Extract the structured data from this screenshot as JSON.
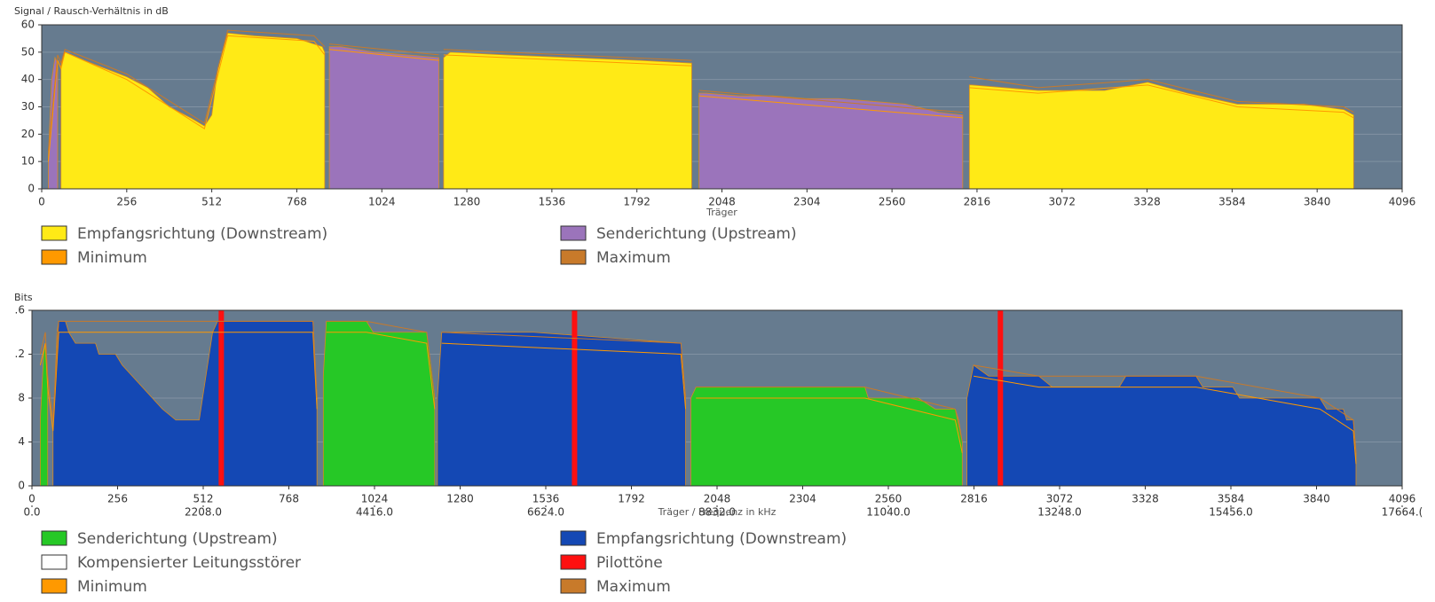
{
  "chart_data": [
    {
      "type": "area",
      "title": "Signal / Rausch-Verhältnis in dB",
      "xlabel": "Träger",
      "xlim": [
        0,
        4096
      ],
      "xticks": [
        0,
        256,
        512,
        768,
        1024,
        1280,
        1536,
        1792,
        2048,
        2304,
        2560,
        2816,
        3072,
        3328,
        3584,
        3840,
        4096
      ],
      "ylim": [
        0,
        60
      ],
      "yticks": [
        0,
        10,
        20,
        30,
        40,
        50,
        60
      ],
      "grid": true,
      "legend": "bottom",
      "series": [
        {
          "name": "Empfangsrichtung (Downstream)",
          "color": "#ffea16",
          "style": "area",
          "x": [
            58,
            70,
            128,
            192,
            256,
            320,
            384,
            448,
            490,
            512,
            530,
            560,
            640,
            768,
            820,
            845,
            852,
            1000,
            1210,
            1230,
            1400,
            1600,
            1800,
            1957,
            2000,
            2793,
            2800,
            3000,
            3200,
            3330,
            3450,
            3600,
            3800,
            3920,
            3950
          ],
          "values": [
            45,
            50,
            47,
            44,
            41,
            37,
            30,
            26,
            23,
            27,
            44,
            57,
            56,
            55,
            53,
            52,
            50,
            null,
            48,
            50,
            49,
            48,
            47,
            46,
            null,
            38,
            38,
            36,
            36,
            39,
            35,
            31,
            31,
            29,
            27
          ]
        },
        {
          "name": "Senderichtung (Upstream)",
          "color": "#9b74bb",
          "style": "area",
          "x": [
            20,
            30,
            40,
            48,
            400,
            866,
            900,
            1000,
            1100,
            1196,
            1500,
            1979,
            2000,
            2100,
            2200,
            2300,
            2400,
            2500,
            2600,
            2700,
            2773
          ],
          "values": [
            12,
            40,
            48,
            46,
            null,
            52,
            52,
            50,
            49,
            48,
            null,
            35,
            35,
            34,
            34,
            33,
            33,
            32,
            31,
            28,
            27
          ]
        },
        {
          "name": "Minimum",
          "color": "#ff9900",
          "style": "line",
          "x": [
            20,
            48,
            58,
            70,
            256,
            490,
            560,
            820,
            852,
            860,
            866,
            1196,
            1203,
            1210,
            1957,
            1968,
            1979,
            2773,
            2783,
            2793,
            3000,
            3330,
            3600,
            3920,
            3950
          ],
          "values": [
            10,
            47,
            44,
            50,
            40,
            22,
            56,
            54,
            49,
            null,
            51,
            47,
            null,
            49,
            45,
            null,
            34,
            26,
            null,
            37,
            35,
            38,
            30,
            28,
            26
          ]
        },
        {
          "name": "Maximum",
          "color": "#c87a2a",
          "style": "line",
          "x": [
            20,
            48,
            58,
            70,
            256,
            490,
            560,
            820,
            852,
            860,
            866,
            1196,
            1203,
            1210,
            1957,
            1968,
            1979,
            2773,
            2783,
            2793,
            3000,
            3330,
            3600,
            3920,
            3950
          ],
          "values": [
            14,
            49,
            46,
            51,
            42,
            24,
            58,
            56,
            52,
            null,
            53,
            49,
            null,
            51,
            47,
            null,
            36,
            28,
            null,
            41,
            37,
            40,
            32,
            30,
            28
          ]
        }
      ]
    },
    {
      "type": "area",
      "title": "Bits",
      "xlabel": "Träger / Frequenz in kHz",
      "xlim": [
        0,
        4096
      ],
      "xticks": [
        0,
        256,
        512,
        768,
        1024,
        1280,
        1536,
        1792,
        2048,
        2304,
        2560,
        2816,
        3072,
        3328,
        3584,
        3840,
        4096
      ],
      "x2lim": [
        0,
        17664
      ],
      "x2ticks": [
        {
          "value": 0,
          "label": "0.0"
        },
        {
          "value": 2208,
          "label": "2208.0"
        },
        {
          "value": 4416,
          "label": "4416.0"
        },
        {
          "value": 6624,
          "label": "6624.0"
        },
        {
          "value": 8832,
          "label": "8832.0"
        },
        {
          "value": 11040,
          "label": "11040.0"
        },
        {
          "value": 13248,
          "label": "13248.0"
        },
        {
          "value": 15456,
          "label": "15456.0"
        },
        {
          "value": 17664,
          "label": "17664.("
        }
      ],
      "ylim": [
        0,
        16
      ],
      "yticks": [
        0,
        4,
        8,
        {
          "value": 12,
          "label": ".2"
        },
        {
          "value": 16,
          "label": ".6"
        }
      ],
      "grid": true,
      "legend": "bottom",
      "series": [
        {
          "name": "Senderichtung (Upstream)",
          "color": "#26c826",
          "style": "area",
          "x": [
            25,
            35,
            40,
            47,
            60,
            871,
            880,
            1000,
            1020,
            1180,
            1204,
            1208,
            1970,
            1985,
            2300,
            2370,
            2490,
            2500,
            2650,
            2700,
            2760,
            2770,
            2781
          ],
          "values": [
            6,
            12,
            13,
            10,
            null,
            10,
            15,
            15,
            14,
            14,
            8,
            null,
            8,
            9,
            9,
            9,
            9,
            8,
            8,
            7,
            7,
            6,
            4
          ]
        },
        {
          "name": "Empfangsrichtung (Downstream)",
          "color": "#1448b4",
          "style": "area",
          "x": [
            63,
            75,
            80,
            100,
            110,
            130,
            190,
            200,
            250,
            270,
            300,
            330,
            360,
            390,
            430,
            500,
            520,
            540,
            555,
            840,
            852,
            860,
            1212,
            1225,
            1500,
            1940,
            1954,
            1962,
            2795,
            2815,
            2860,
            3010,
            3050,
            3250,
            3270,
            3480,
            3500,
            3590,
            3610,
            3850,
            3870,
            3920,
            3930,
            3950,
            3958
          ],
          "values": [
            5,
            14,
            15,
            15,
            14,
            13,
            13,
            12,
            12,
            11,
            10,
            9,
            8,
            7,
            6,
            6,
            10,
            14,
            15,
            15,
            8,
            null,
            8,
            14,
            14,
            13,
            8,
            null,
            8,
            11,
            10,
            10,
            9,
            9,
            10,
            10,
            9,
            9,
            8,
            8,
            7,
            7,
            6,
            6,
            3
          ]
        },
        {
          "name": "Kompensierter Leitungsstörer",
          "color": "#ffffff",
          "style": "area",
          "x": [],
          "values": []
        },
        {
          "name": "Pilottöne",
          "color": "#ff1010",
          "style": "bar",
          "x": [
            566,
            1622,
            2895
          ],
          "values": [
            16,
            16,
            16
          ]
        },
        {
          "name": "Minimum",
          "color": "#ff9900",
          "style": "line",
          "x": [
            25,
            40,
            47,
            63,
            80,
            840,
            852,
            860,
            880,
            1000,
            1180,
            1204,
            1208,
            1225,
            1940,
            1954,
            1962,
            1985,
            2490,
            2760,
            2781,
            2790,
            2815,
            3010,
            3270,
            3480,
            3850,
            3950,
            3958
          ],
          "values": [
            11,
            13,
            9,
            5,
            14,
            14,
            7,
            null,
            14,
            14,
            13,
            7,
            null,
            13,
            12,
            7,
            null,
            8,
            8,
            6,
            3,
            null,
            10,
            9,
            9,
            9,
            7,
            5,
            2
          ]
        },
        {
          "name": "Maximum",
          "color": "#c87a2a",
          "style": "line",
          "x": [
            25,
            40,
            47,
            63,
            80,
            840,
            852,
            860,
            880,
            1000,
            1180,
            1204,
            1208,
            1225,
            1940,
            1954,
            1962,
            1985,
            2490,
            2760,
            2781,
            2790,
            2815,
            3010,
            3270,
            3480,
            3850,
            3950,
            3958
          ],
          "values": [
            12,
            14,
            10,
            6,
            15,
            15,
            8,
            null,
            15,
            15,
            14,
            8,
            null,
            14,
            13,
            8,
            null,
            9,
            9,
            7,
            4,
            null,
            11,
            10,
            10,
            10,
            8,
            6,
            3
          ]
        }
      ]
    }
  ]
}
